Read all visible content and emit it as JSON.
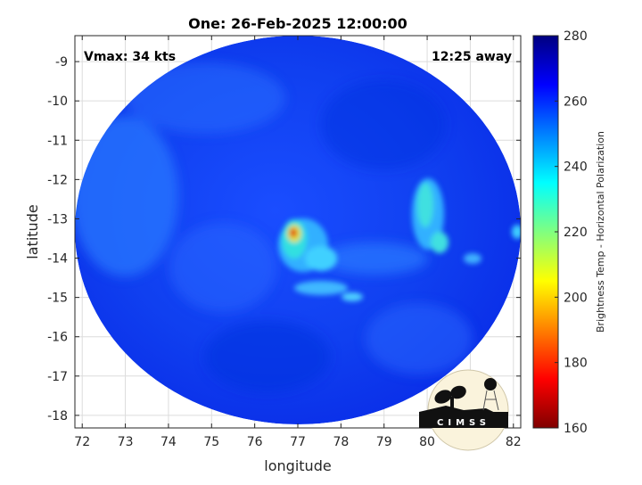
{
  "chart_data": {
    "type": "heatmap",
    "title": "One: 26-Feb-2025 12:00:00",
    "xlabel": "longitude",
    "ylabel": "latitude",
    "xlim": [
      71.83,
      82.17
    ],
    "ylim": [
      -18.32,
      -8.34
    ],
    "xticks": [
      72,
      73,
      74,
      75,
      76,
      77,
      78,
      79,
      80,
      81,
      82
    ],
    "yticks": [
      -9,
      -10,
      -11,
      -12,
      -13,
      -14,
      -15,
      -16,
      -17,
      -18
    ],
    "grid": true,
    "colormap": "jet",
    "colorbar": {
      "label": "Brightness Temp - Horizontal Polarization",
      "range": [
        160,
        280
      ],
      "ticks": [
        160,
        180,
        200,
        220,
        240,
        260,
        280
      ]
    },
    "annotations": {
      "left": "Vmax: 34 kts",
      "right": "12:25 away"
    },
    "background_value_approx": 262,
    "cold_features": [
      {
        "lon": 76.9,
        "lat": -13.4,
        "min_bt": 185
      },
      {
        "lon": 79.9,
        "lat": -12.6,
        "min_bt": 225
      },
      {
        "lon": 80.2,
        "lat": -13.5,
        "min_bt": 225
      },
      {
        "lon": 77.5,
        "lat": -13.9,
        "min_bt": 230
      },
      {
        "lon": 77.3,
        "lat": -14.8,
        "min_bt": 238
      }
    ],
    "logo": "CIMSS"
  }
}
